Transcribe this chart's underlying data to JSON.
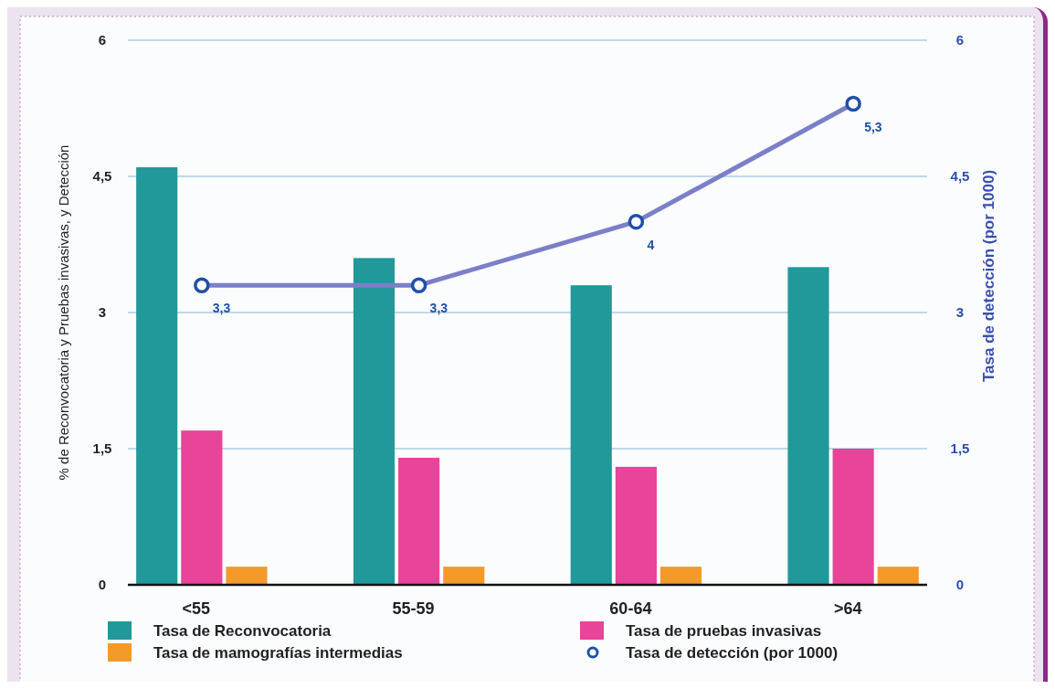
{
  "chart_data": {
    "type": "bar",
    "categories": [
      "<55",
      "55-59",
      "60-64",
      ">64"
    ],
    "ylabel": "% de Reconvocatoria y Pruebas invasivas, y Detección",
    "y2label": "Tasa de detección (por 1000)",
    "ylim": [
      0,
      6
    ],
    "yticks": [
      0,
      {
        "value": 1.5,
        "label": "1,5"
      },
      3,
      {
        "value": 4.5,
        "label": "4,5"
      },
      6
    ],
    "y2lim": [
      0,
      6
    ],
    "y2ticks": [
      0,
      {
        "value": 1.5,
        "label": "1,5"
      },
      3,
      {
        "value": 4.5,
        "label": "4,5"
      },
      6
    ],
    "grid": "y",
    "legend": "bottom",
    "series": [
      {
        "name": "Tasa de Reconvocatoria",
        "color": "#21989a",
        "values": [
          4.6,
          3.6,
          3.3,
          3.5
        ]
      },
      {
        "name": "Tasa de pruebas invasivas",
        "color": "#e8449a",
        "values": [
          1.7,
          1.4,
          1.3,
          1.5
        ]
      },
      {
        "name": "Tasa de mamografías intermedias",
        "color": "#f39a2a",
        "values": [
          0.2,
          0.2,
          0.2,
          0.2
        ]
      },
      {
        "name": "Tasa de detección (por 1000)",
        "type": "line",
        "axis": "y2",
        "color": "#7a80c8",
        "marker": "circle",
        "values": [
          3.3,
          3.3,
          4,
          5.3
        ],
        "value_labels": [
          "3,3",
          "3,3",
          "4",
          "5,3"
        ]
      }
    ]
  }
}
